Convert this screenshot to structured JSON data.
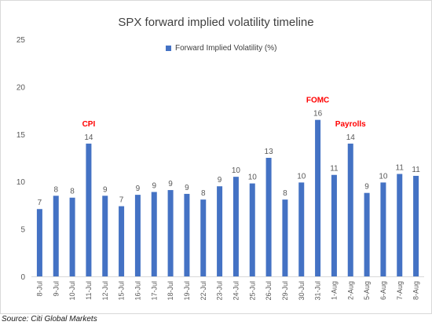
{
  "chart_data": {
    "type": "bar",
    "title": "SPX forward implied volatility timeline",
    "categories": [
      "8-Jul",
      "9-Jul",
      "10-Jul",
      "11-Jul",
      "12-Jul",
      "15-Jul",
      "16-Jul",
      "17-Jul",
      "18-Jul",
      "19-Jul",
      "22-Jul",
      "23-Jul",
      "24-Jul",
      "25-Jul",
      "26-Jul",
      "29-Jul",
      "30-Jul",
      "31-Jul",
      "1-Aug",
      "2-Aug",
      "5-Aug",
      "6-Aug",
      "7-Aug",
      "8-Aug"
    ],
    "series": [
      {
        "name": "Forward Implied Volatility (%)",
        "color": "#4472c4",
        "values": [
          7.1,
          8.5,
          8.3,
          14.0,
          8.5,
          7.4,
          8.6,
          8.9,
          9.1,
          8.7,
          8.1,
          9.5,
          10.5,
          9.8,
          12.5,
          8.1,
          9.9,
          16.5,
          10.7,
          14.0,
          8.8,
          9.9,
          10.8,
          10.6
        ],
        "labels": [
          "7",
          "8",
          "8",
          "14",
          "9",
          "7",
          "9",
          "9",
          "9",
          "9",
          "8",
          "9",
          "10",
          "10",
          "13",
          "8",
          "10",
          "16",
          "11",
          "14",
          "9",
          "10",
          "11",
          "11"
        ]
      }
    ],
    "ylim": [
      0,
      25
    ],
    "yticks": [
      0,
      5,
      10,
      15,
      20,
      25
    ],
    "grid": false,
    "legend_position": "top-center",
    "annotations": [
      {
        "text": "CPI",
        "category": "11-Jul",
        "color": "#ff0000"
      },
      {
        "text": "FOMC",
        "category": "31-Jul",
        "color": "#ff0000"
      },
      {
        "text": "Payrolls",
        "category": "2-Aug",
        "color": "#ff0000"
      }
    ]
  },
  "source": "Source: Citi Global Markets"
}
